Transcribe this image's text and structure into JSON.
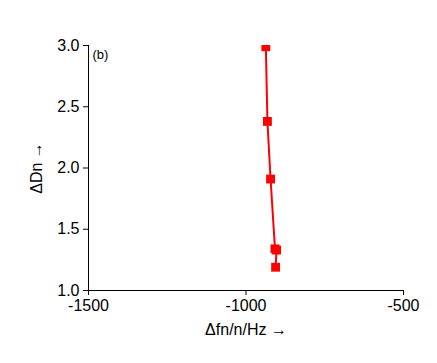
{
  "chart_data": {
    "type": "scatter",
    "title": "(b)",
    "x_label": "Δfn/n/Hz",
    "y_label": "ΔDn",
    "x": [
      -937,
      -932,
      -922,
      -908,
      -903,
      -906
    ],
    "values": [
      2.99,
      2.38,
      1.91,
      1.34,
      1.33,
      1.19
    ],
    "color": "#ff0000",
    "marker": "square",
    "line_style": "solid",
    "xlim": [
      -1500,
      -500
    ],
    "xticks": [
      -1500,
      -1000,
      -500
    ],
    "ylim": [
      1.0,
      3.0
    ],
    "yticks": [
      {
        "value": 1.0,
        "label": "1.0"
      },
      1.5,
      {
        "value": 2.0,
        "label": "2.0"
      },
      2.5,
      {
        "value": 3.0,
        "label": "3.0"
      }
    ],
    "grid": false
  }
}
